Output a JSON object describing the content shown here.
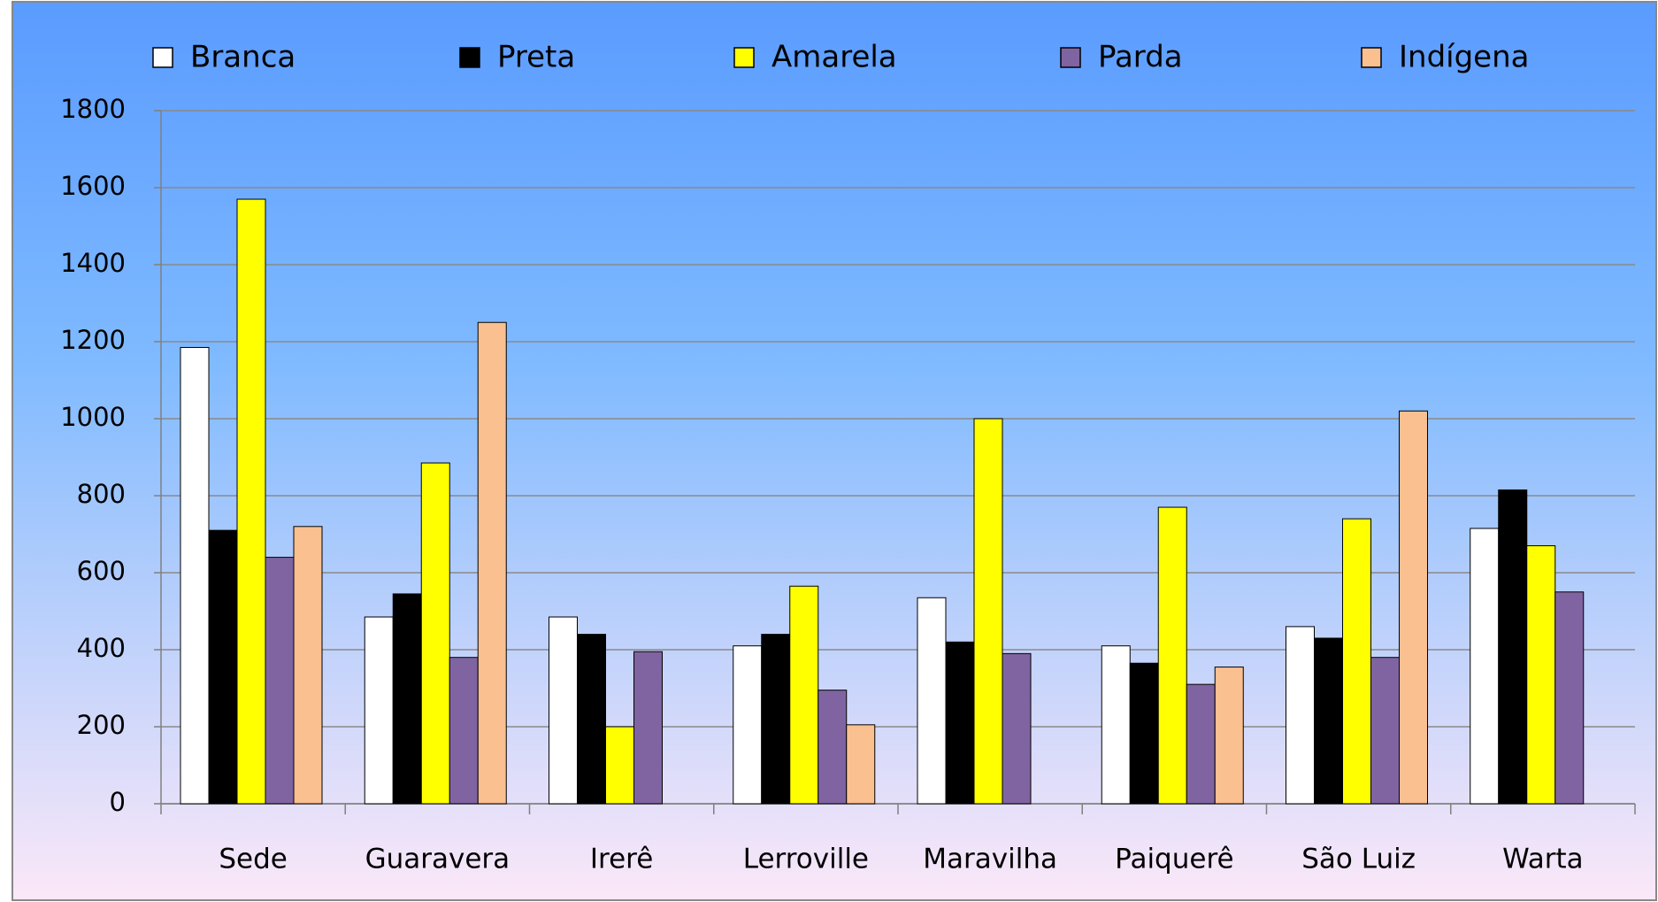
{
  "chart_data": {
    "type": "bar",
    "categories": [
      "Sede",
      "Guaravera",
      "Irerê",
      "Lerroville",
      "Maravilha",
      "Paiquerê",
      "São Luiz",
      "Warta"
    ],
    "series": [
      {
        "name": "Branca",
        "color": "#ffffff",
        "values": [
          1185,
          485,
          485,
          410,
          535,
          410,
          460,
          715
        ]
      },
      {
        "name": "Preta",
        "color": "#000000",
        "values": [
          710,
          545,
          440,
          440,
          420,
          365,
          430,
          815
        ]
      },
      {
        "name": "Amarela",
        "color": "#ffff00",
        "values": [
          1570,
          885,
          200,
          565,
          1000,
          770,
          740,
          670
        ]
      },
      {
        "name": "Parda",
        "color": "#8064a2",
        "values": [
          640,
          380,
          395,
          295,
          390,
          310,
          380,
          550
        ]
      },
      {
        "name": "Indígena",
        "color": "#fac090",
        "values": [
          720,
          1250,
          null,
          205,
          null,
          355,
          1020,
          null
        ]
      }
    ],
    "ylim": [
      0,
      1800
    ],
    "yticks": [
      0,
      200,
      400,
      600,
      800,
      1000,
      1200,
      1400,
      1600,
      1800
    ],
    "grid": true,
    "legend": "top"
  }
}
